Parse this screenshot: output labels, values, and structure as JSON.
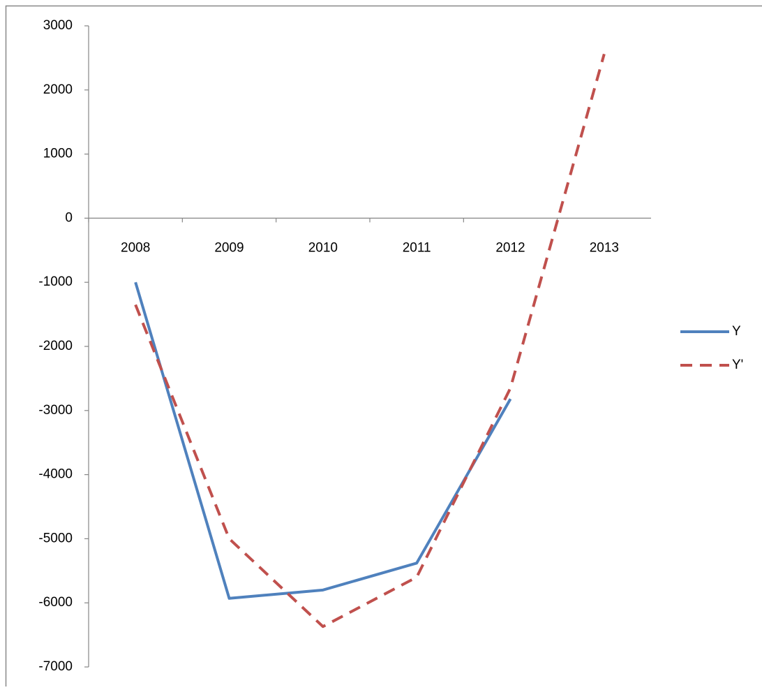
{
  "chart_data": {
    "type": "line",
    "categories": [
      "2008",
      "2009",
      "2010",
      "2011",
      "2012",
      "2013"
    ],
    "series": [
      {
        "name": "Y",
        "color": "#4f81bd",
        "dashed": false,
        "values": [
          -1000,
          -5930,
          -5800,
          -5380,
          -2820,
          null
        ]
      },
      {
        "name": "Y'",
        "color": "#c0504d",
        "dashed": true,
        "values": [
          -1350,
          -5000,
          -6370,
          -5600,
          -2650,
          2560
        ]
      }
    ],
    "ylim": [
      -7000,
      3000
    ],
    "yticks": [
      -7000,
      -6000,
      -5000,
      -4000,
      -3000,
      -2000,
      -1000,
      0,
      1000,
      2000,
      3000
    ],
    "grid": false,
    "legend": "right"
  }
}
